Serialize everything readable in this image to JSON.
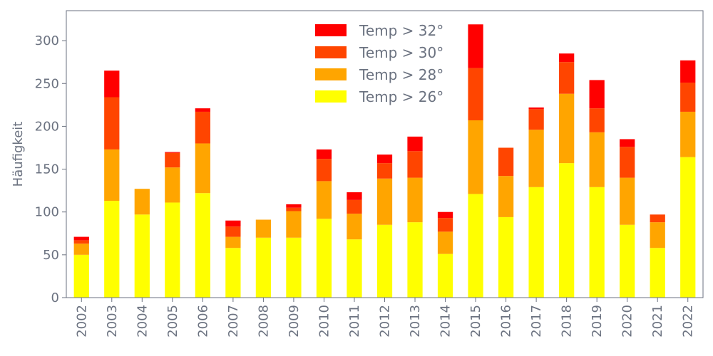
{
  "chart_data": {
    "type": "bar",
    "stacked": true,
    "title": "",
    "xlabel": "",
    "ylabel": "Häufigkeit",
    "ylim": [
      0,
      335
    ],
    "yticks": [
      0,
      50,
      100,
      150,
      200,
      250,
      300
    ],
    "categories": [
      "2002",
      "2003",
      "2004",
      "2005",
      "2006",
      "2007",
      "2008",
      "2009",
      "2010",
      "2011",
      "2012",
      "2013",
      "2014",
      "2015",
      "2016",
      "2017",
      "2018",
      "2019",
      "2020",
      "2021",
      "2022"
    ],
    "series": [
      {
        "name": "Temp > 26°",
        "color": "#ffff00",
        "values": [
          50,
          113,
          97,
          111,
          122,
          58,
          70,
          70,
          92,
          68,
          85,
          88,
          51,
          121,
          94,
          129,
          157,
          129,
          85,
          58,
          164
        ]
      },
      {
        "name": "Temp > 28°",
        "color": "#ffa500",
        "values": [
          13,
          60,
          30,
          41,
          58,
          13,
          21,
          31,
          44,
          30,
          54,
          52,
          26,
          86,
          48,
          67,
          81,
          64,
          55,
          30,
          53
        ]
      },
      {
        "name": "Temp > 30°",
        "color": "#ff4500",
        "values": [
          4,
          61,
          0,
          17,
          37,
          12,
          0,
          4,
          26,
          16,
          18,
          31,
          16,
          61,
          33,
          24,
          37,
          28,
          36,
          9,
          34
        ]
      },
      {
        "name": "Temp > 32°",
        "color": "#ff0000",
        "values": [
          4,
          31,
          0,
          1,
          4,
          7,
          0,
          4,
          11,
          9,
          10,
          17,
          7,
          51,
          0,
          2,
          10,
          33,
          9,
          0,
          26
        ]
      }
    ],
    "legend_position": "top-center",
    "grid": false
  }
}
